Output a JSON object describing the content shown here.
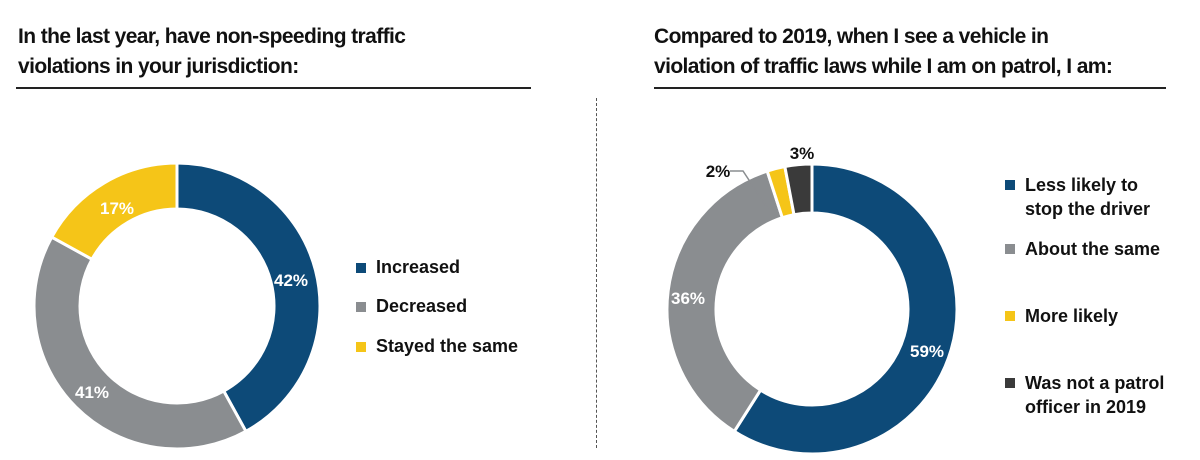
{
  "chart_data": [
    {
      "type": "pie",
      "variant": "donut",
      "title": "In the last year, have non-speeding traffic violations in your jurisdiction:",
      "title_lines": [
        "In the last year, have non-speeding traffic",
        "violations in your jurisdiction:"
      ],
      "categories": [
        "Increased",
        "Decreased",
        "Stayed the same"
      ],
      "values": [
        42,
        41,
        17
      ],
      "labels": [
        "42%",
        "41%",
        "17%"
      ],
      "colors": [
        "#0d4a78",
        "#8a8d90",
        "#f5c518"
      ],
      "legend_position": "right"
    },
    {
      "type": "pie",
      "variant": "donut",
      "title": "Compared to 2019, when I see a vehicle in violation of traffic laws while I am on patrol, I am:",
      "title_lines": [
        "Compared to 2019, when I see a vehicle in",
        "violation of traffic laws while I am on patrol, I am:"
      ],
      "categories": [
        "Less likely to stop the driver",
        "About the same",
        "More likely",
        "Was not a patrol officer in 2019"
      ],
      "legend_lines": [
        [
          "Less likely to",
          "stop the driver"
        ],
        [
          "About the same"
        ],
        [
          "More likely"
        ],
        [
          "Was not a patrol",
          "officer in 2019"
        ]
      ],
      "values": [
        59,
        36,
        2,
        3
      ],
      "labels": [
        "59%",
        "36%",
        "2%",
        "3%"
      ],
      "colors": [
        "#0d4a78",
        "#8a8d90",
        "#f5c518",
        "#3a3a3a"
      ],
      "legend_position": "right"
    }
  ]
}
